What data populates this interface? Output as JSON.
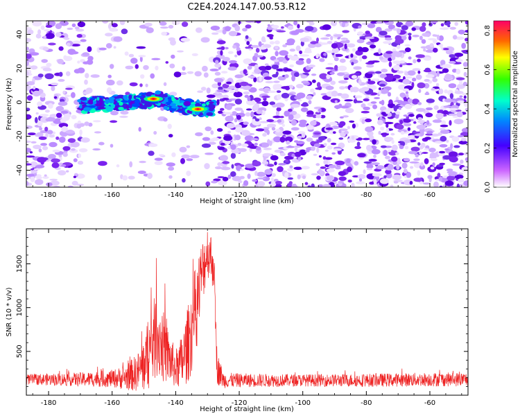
{
  "figure_title": "C2E4.2024.147.00.53.R12",
  "chart_data": [
    {
      "type": "heatmap",
      "xlabel": "Height of straight line (km)",
      "ylabel": "Frequency (Hz)",
      "xlim": [
        -187,
        -48
      ],
      "ylim": [
        -50,
        48
      ],
      "x_ticks": [
        -180,
        -160,
        -140,
        -120,
        -100,
        -80,
        -60
      ],
      "y_ticks": [
        -40,
        -20,
        0,
        20,
        40
      ],
      "gap_region_km": [
        -168,
        -128
      ],
      "signal_trace": {
        "x": [
          -170,
          -165,
          -160,
          -155,
          -150,
          -145,
          -140,
          -135,
          -130,
          -128
        ],
        "y": [
          -2,
          -1,
          -1,
          0,
          1,
          2,
          -2,
          -3,
          -4,
          -3
        ]
      },
      "peaks": [
        {
          "x": -147,
          "y": 2,
          "amplitude": 0.85
        },
        {
          "x": -133,
          "y": -4,
          "amplitude": 0.85
        }
      ],
      "colorbar": {
        "label": "Normalized spectral amplitude",
        "range": [
          0.0,
          0.85
        ],
        "ticks": [
          "0.0",
          "0.2",
          "0.4",
          "0.6",
          "0.8"
        ]
      }
    },
    {
      "type": "line",
      "xlabel": "Height of straight line (km)",
      "ylabel": "SNR (10 * v/v)",
      "xlim": [
        -187,
        -48
      ],
      "ylim": [
        0,
        1900
      ],
      "x_ticks": [
        -180,
        -160,
        -140,
        -120,
        -100,
        -80,
        -60
      ],
      "y_ticks": [
        500,
        1000,
        1500
      ],
      "color": "#ee2222",
      "envelope": {
        "x": [
          -187,
          -170,
          -160,
          -156,
          -152,
          -150,
          -148,
          -146,
          -144,
          -142,
          -140,
          -138,
          -136,
          -134,
          -132,
          -130,
          -128,
          -127,
          -125,
          -120,
          -100,
          -80,
          -60,
          -48
        ],
        "baseline": [
          180,
          180,
          190,
          200,
          260,
          350,
          520,
          700,
          560,
          420,
          300,
          380,
          600,
          900,
          1350,
          1650,
          1500,
          320,
          170,
          170,
          170,
          170,
          180,
          180
        ],
        "amplitude": [
          60,
          80,
          100,
          140,
          220,
          320,
          450,
          500,
          420,
          300,
          220,
          320,
          450,
          550,
          400,
          300,
          300,
          200,
          90,
          80,
          70,
          75,
          80,
          80
        ]
      }
    }
  ]
}
